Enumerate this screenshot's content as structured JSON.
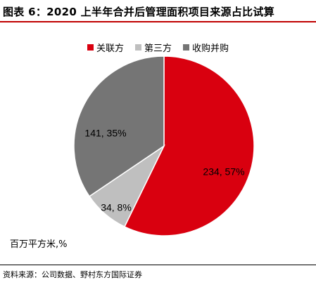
{
  "title": "图表 6：2020 上半年合并后管理面积项目来源占比试算",
  "unit_note": "百万平方米,%",
  "source": "资料来源：公司数据、野村东方国际证券",
  "chart_data": {
    "type": "pie",
    "title": "图表 6：2020 上半年合并后管理面积项目来源占比试算",
    "unit": "百万平方米,%",
    "legend_position": "top",
    "slices": [
      {
        "name": "关联方",
        "value": 234,
        "percent": 57,
        "label": "234, 57%",
        "color": "#d9000f"
      },
      {
        "name": "第三方",
        "value": 34,
        "percent": 8,
        "label": "34, 8%",
        "color": "#bfbfbf"
      },
      {
        "name": "收购并购",
        "value": 141,
        "percent": 35,
        "label": "141, 35%",
        "color": "#757575"
      }
    ]
  }
}
